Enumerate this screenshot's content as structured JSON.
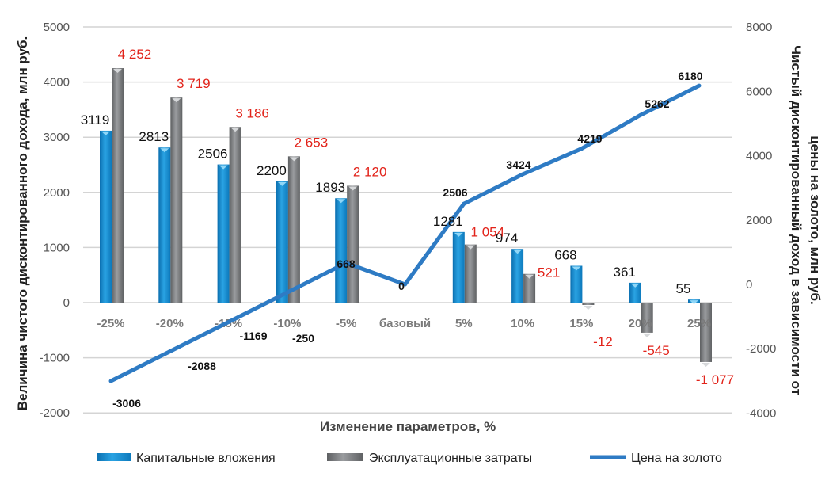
{
  "chart_data": {
    "type": "bar+line",
    "xlabel": "Изменение параметров, %",
    "ylabel_left": "Величина чистого дисконтированного дохода, млн руб.",
    "ylabel_right_lines": [
      "Чистый дисконтированный доход в зависимости от",
      "цены на золото, млн руб."
    ],
    "categories": [
      "-25%",
      "-20%",
      "-15%",
      "-10%",
      "-5%",
      "базовый",
      "5%",
      "10%",
      "15%",
      "20%",
      "25%"
    ],
    "ylim_left": [
      -2000,
      5000
    ],
    "yticks_left": [
      "5000",
      "4000",
      "3000",
      "2000",
      "1000",
      "0",
      "-1000",
      "-2000"
    ],
    "ylim_right": [
      -4000,
      8000
    ],
    "yticks_right": [
      "8000",
      "6000",
      "4000",
      "2000",
      "0",
      "-2000",
      "-4000"
    ],
    "grid": true,
    "legend_position": "bottom",
    "series": [
      {
        "name": "Капитальные вложения",
        "type": "bar",
        "axis": "left",
        "color": "#1a8fd0",
        "values": [
          3119,
          2813,
          2506,
          2200,
          1893,
          null,
          1281,
          974,
          668,
          361,
          55
        ],
        "labels": [
          "3119",
          "2813",
          "2506",
          "2200",
          "1893",
          "",
          "1281",
          "974",
          "668",
          "361",
          "55"
        ]
      },
      {
        "name": "Эксплуатационные затраты",
        "type": "bar",
        "axis": "left",
        "color": "#7d7f82",
        "values": [
          4252,
          3719,
          3186,
          2653,
          2120,
          null,
          1054,
          521,
          -12,
          -545,
          -1077
        ],
        "labels": [
          "4 252",
          "3 719",
          "3 186",
          "2 653",
          "2 120",
          "",
          "1 054",
          "521",
          "-12",
          "-545",
          "-1 077"
        ]
      },
      {
        "name": "Цена на золото",
        "type": "line",
        "axis": "right",
        "color": "#2e7bc4",
        "values": [
          -3006,
          -2088,
          -1169,
          -250,
          668,
          0,
          2506,
          3424,
          4219,
          5262,
          6180
        ],
        "labels": [
          "-3006",
          "-2088",
          "-1169",
          "-250",
          "668",
          "0",
          "2506",
          "3424",
          "4219",
          "5262",
          "6180"
        ]
      }
    ]
  }
}
